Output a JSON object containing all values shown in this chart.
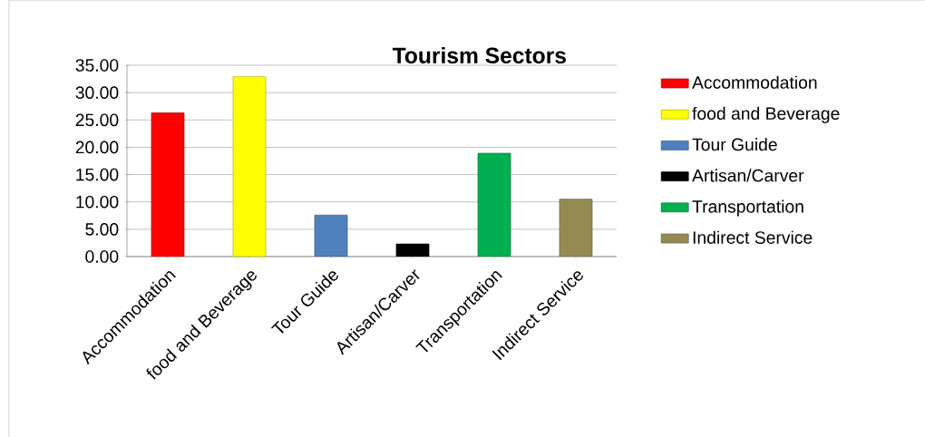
{
  "chart_data": {
    "type": "bar",
    "title": "Tourism Sectors",
    "categories": [
      "Accommodation",
      "food and Beverage",
      "Tour Guide",
      "Artisan/Carver",
      "Transportation",
      "Indirect Service"
    ],
    "series": [
      {
        "name": "Accommodation",
        "color": "#ff0000",
        "values": [
          26.3,
          null,
          null,
          null,
          null,
          null
        ]
      },
      {
        "name": "food and Beverage",
        "color": "#ffff00",
        "values": [
          null,
          32.9,
          null,
          null,
          null,
          null
        ]
      },
      {
        "name": "Tour Guide",
        "color": "#4f81bd",
        "values": [
          null,
          null,
          7.6,
          null,
          null,
          null
        ]
      },
      {
        "name": "Artisan/Carver",
        "color": "#000000",
        "values": [
          null,
          null,
          null,
          2.3,
          null,
          null
        ]
      },
      {
        "name": "Transportation",
        "color": "#00b050",
        "values": [
          null,
          null,
          null,
          null,
          18.9,
          null
        ]
      },
      {
        "name": "Indirect Service",
        "color": "#948a54",
        "values": [
          null,
          null,
          null,
          null,
          null,
          10.5
        ]
      }
    ],
    "ylim": [
      0,
      35
    ],
    "yticks": [
      {
        "value": 0,
        "label": "0.00"
      },
      {
        "value": 5,
        "label": "5.00"
      },
      {
        "value": 10,
        "label": "10.00"
      },
      {
        "value": 15,
        "label": "15.00"
      },
      {
        "value": 20,
        "label": "20.00"
      },
      {
        "value": 25,
        "label": "25.00"
      },
      {
        "value": 30,
        "label": "30.00"
      },
      {
        "value": 35,
        "label": "35.00"
      }
    ],
    "grid": "y",
    "legend": "right"
  }
}
